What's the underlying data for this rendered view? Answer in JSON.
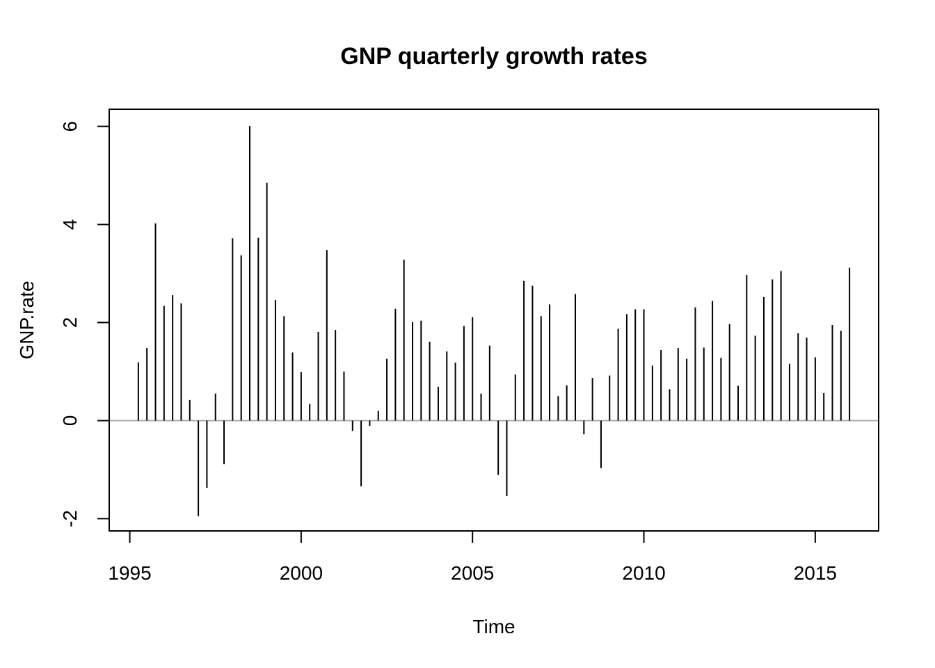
{
  "chart_data": {
    "type": "bar",
    "title": "GNP quarterly growth rates",
    "xlabel": "Time",
    "ylabel": "GNP.rate",
    "xlim": [
      1994.4,
      2016.85
    ],
    "ylim": [
      -2.25,
      6.35
    ],
    "xticks": [
      1995,
      2000,
      2005,
      2010,
      2015
    ],
    "xtick_labels": [
      "1995",
      "2000",
      "2005",
      "2010",
      "2015"
    ],
    "yticks": [
      -2,
      0,
      2,
      4,
      6
    ],
    "ytick_labels": [
      "-2",
      "0",
      "2",
      "4",
      "6"
    ],
    "grid": false,
    "baseline": 0,
    "baseline_color": "#aaaaaa",
    "bar_color": "#000000",
    "series": [
      {
        "x": [
          1995.25,
          1995.5,
          1995.75,
          1996.0,
          1996.25,
          1996.5,
          1996.75,
          1997.0,
          1997.25,
          1997.5,
          1997.75,
          1998.0,
          1998.25,
          1998.5,
          1998.75,
          1999.0,
          1999.25,
          1999.5,
          1999.75,
          2000.0,
          2000.25,
          2000.5,
          2000.75,
          2001.0,
          2001.25,
          2001.5,
          2001.75,
          2002.0,
          2002.25,
          2002.5,
          2002.75,
          2003.0,
          2003.25,
          2003.5,
          2003.75,
          2004.0,
          2004.25,
          2004.5,
          2004.75,
          2005.0,
          2005.25,
          2005.5,
          2005.75,
          2006.0,
          2006.25,
          2006.5,
          2006.75,
          2007.0,
          2007.25,
          2007.5,
          2007.75,
          2008.0,
          2008.25,
          2008.5,
          2008.75,
          2009.0,
          2009.25,
          2009.5,
          2009.75,
          2010.0,
          2010.25,
          2010.5,
          2010.75,
          2011.0,
          2011.25,
          2011.5,
          2011.75,
          2012.0,
          2012.25,
          2012.5,
          2012.75,
          2013.0,
          2013.25,
          2013.5,
          2013.75,
          2014.0,
          2014.25,
          2014.5,
          2014.75,
          2015.0,
          2015.25,
          2015.5,
          2015.75,
          2016.0
        ],
        "values": [
          1.19,
          1.48,
          4.02,
          2.34,
          2.56,
          2.39,
          0.42,
          -1.95,
          -1.37,
          0.55,
          -0.89,
          3.72,
          3.37,
          6.01,
          3.73,
          4.85,
          2.46,
          2.13,
          1.39,
          0.99,
          0.34,
          1.81,
          3.48,
          1.85,
          1.0,
          -0.21,
          -1.34,
          -0.11,
          0.2,
          1.26,
          2.28,
          3.28,
          2.01,
          2.04,
          1.61,
          0.69,
          1.41,
          1.18,
          1.93,
          2.11,
          0.55,
          1.53,
          -1.11,
          -1.54,
          0.94,
          2.85,
          2.75,
          2.13,
          2.37,
          0.5,
          0.72,
          2.58,
          -0.28,
          0.87,
          -0.97,
          0.92,
          1.87,
          2.17,
          2.27,
          2.27,
          1.12,
          1.44,
          0.64,
          1.48,
          1.26,
          2.31,
          1.49,
          2.44,
          1.28,
          1.97,
          0.71,
          2.97,
          1.73,
          2.52,
          2.88,
          3.05,
          1.16,
          1.78,
          1.69,
          1.29,
          0.56,
          1.95,
          1.83,
          3.12
        ]
      }
    ]
  }
}
